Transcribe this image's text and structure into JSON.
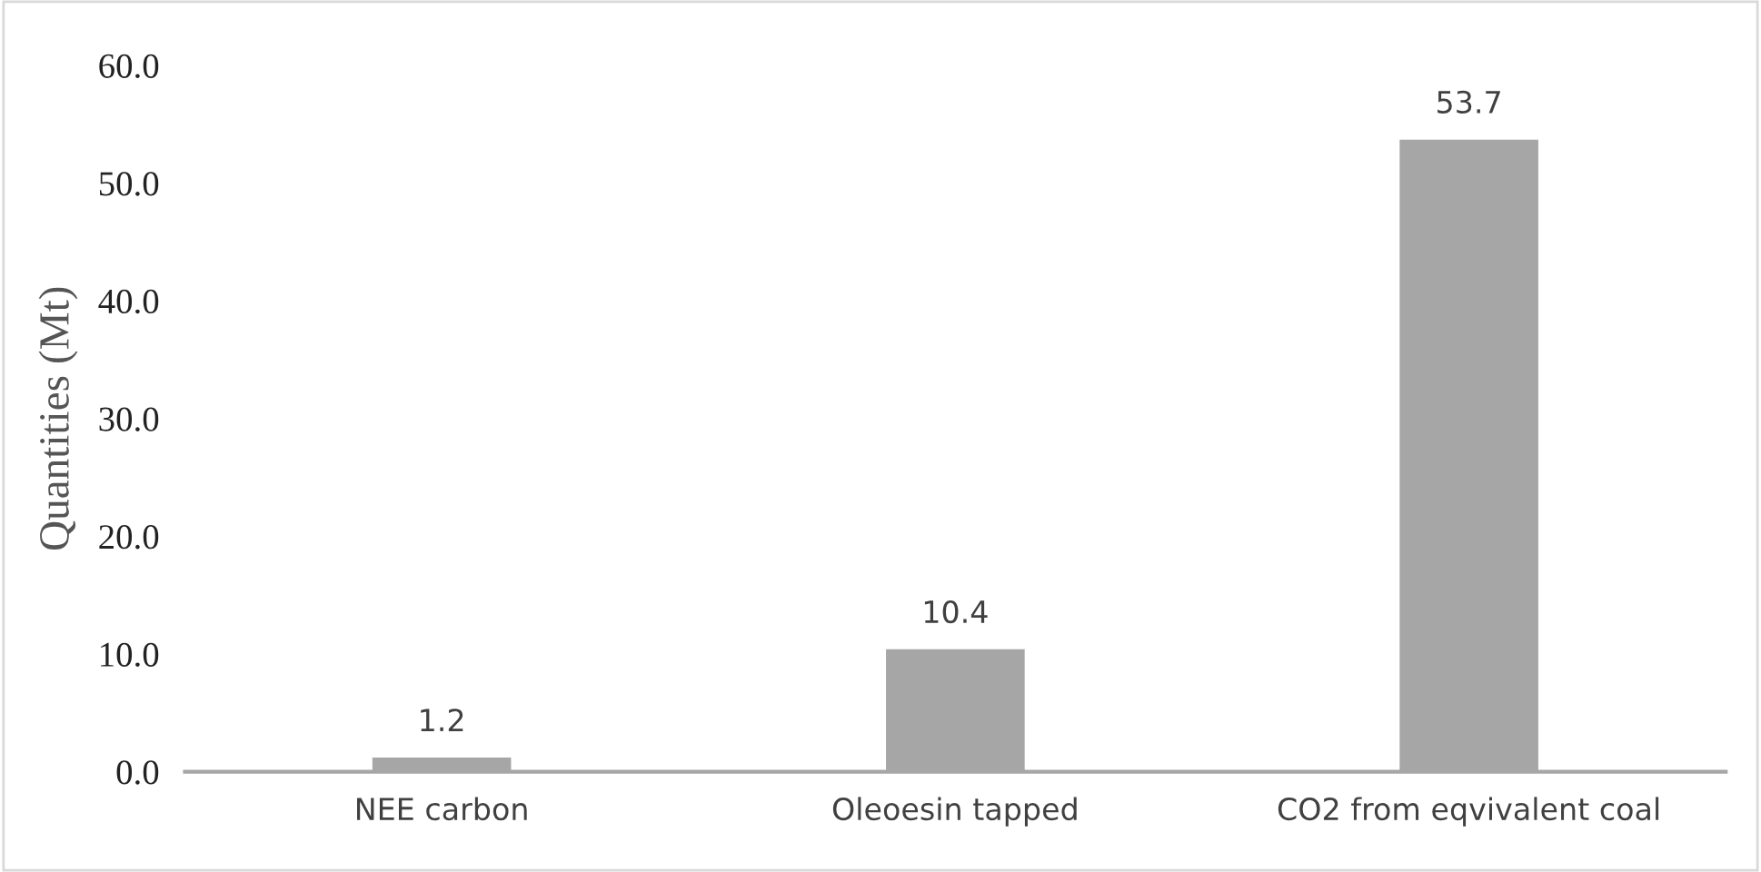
{
  "chart_data": {
    "type": "bar",
    "ylabel": "Quantities (Mt)",
    "categories": [
      "NEE carbon",
      "Oleoesin tapped",
      "CO2 from eqvivalent coal"
    ],
    "values": [
      1.2,
      10.4,
      53.7
    ],
    "color": "#a6a6a6",
    "ylim": [
      0,
      60
    ],
    "yticks": [
      {
        "value": 0,
        "label": "0.0"
      },
      {
        "value": 10,
        "label": "10.0"
      },
      {
        "value": 20,
        "label": "20.0"
      },
      {
        "value": 30,
        "label": "30.0"
      },
      {
        "value": 40,
        "label": "40.0"
      },
      {
        "value": 50,
        "label": "50.0"
      },
      {
        "value": 60,
        "label": "60.0"
      }
    ],
    "data_labels": true,
    "grid": false,
    "legend": false
  }
}
